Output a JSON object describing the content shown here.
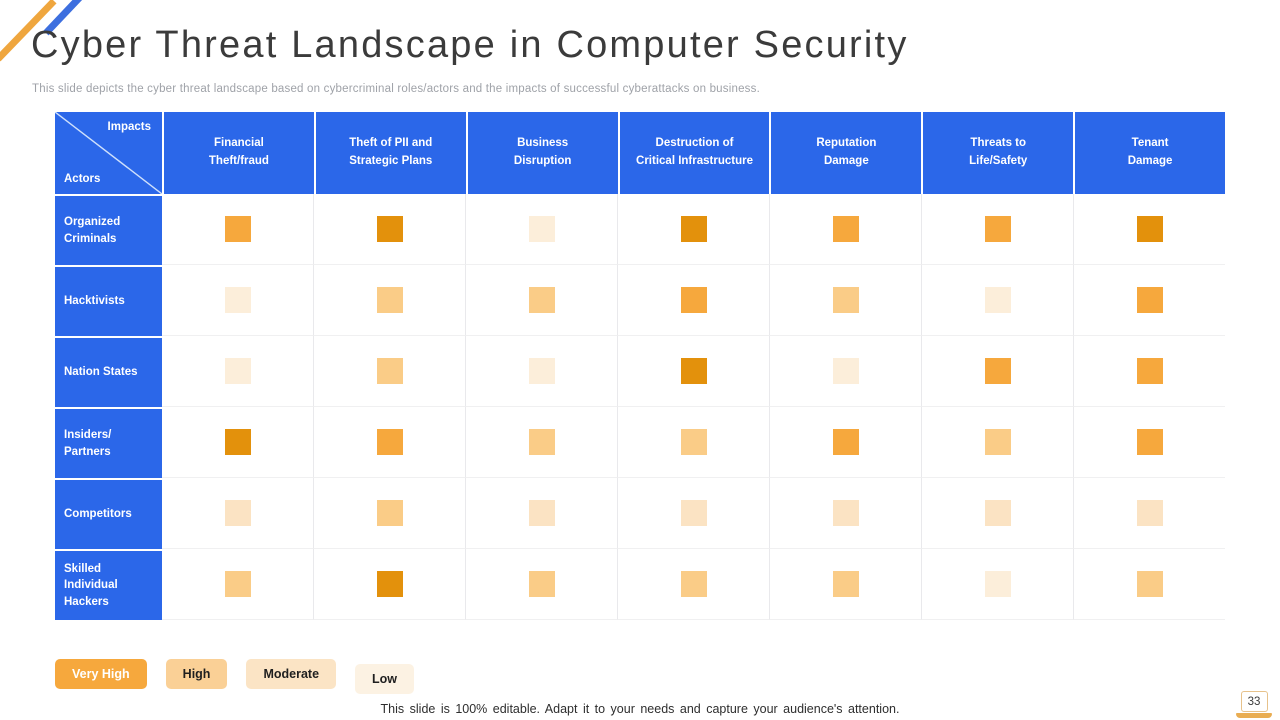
{
  "slide": {
    "title": "Cyber Threat Landscape in Computer Security",
    "subtitle": "This slide depicts the cyber threat landscape based on cybercriminal roles/actors and the impacts of successful cyberattacks on business.",
    "footer_note": "This slide is 100% editable. Adapt it to your needs and capture your audience's attention.",
    "page_number": "33"
  },
  "colors": {
    "header_blue": "#2b67e9",
    "decor_orange": "#efa63e",
    "decor_blue": "#3d6fdf",
    "grid_line": "#e9e9ec"
  },
  "matrix": {
    "corner": {
      "top_label": "Impacts",
      "bottom_label": "Actors"
    },
    "columns": [
      "Financial\nTheft/fraud",
      "Theft of PII and\nStrategic Plans",
      "Business\nDisruption",
      "Destruction of\nCritical Infrastructure",
      "Reputation\nDamage",
      "Threats to\nLife/Safety",
      "Tenant\nDamage"
    ],
    "rows": [
      {
        "actor": "Organized\nCriminals",
        "levels": [
          4,
          5,
          1,
          5,
          4,
          4,
          5
        ]
      },
      {
        "actor": "Hacktivists",
        "levels": [
          1,
          3,
          3,
          4,
          3,
          1,
          4
        ]
      },
      {
        "actor": "Nation States",
        "levels": [
          1,
          3,
          1,
          5,
          1,
          4,
          4
        ]
      },
      {
        "actor": "Insiders/\nPartners",
        "levels": [
          5,
          4,
          3,
          3,
          4,
          3,
          4
        ]
      },
      {
        "actor": "Competitors",
        "levels": [
          2,
          3,
          2,
          2,
          2,
          2,
          2
        ]
      },
      {
        "actor": "Skilled\nIndividual\nHackers",
        "levels": [
          3,
          5,
          3,
          3,
          3,
          1,
          3
        ]
      }
    ],
    "level_colors": {
      "1": "#fceeda",
      "2": "#fbe3c3",
      "3": "#facc87",
      "4": "#f6a83d",
      "5": "#e3910c"
    }
  },
  "legend": [
    {
      "label": "Very High",
      "color": "#f6a83d",
      "text_color": "#ffffff",
      "offset": false
    },
    {
      "label": "High",
      "color": "#fad096",
      "text_color": "#1f1f1f",
      "offset": false
    },
    {
      "label": "Moderate",
      "color": "#fbe4c5",
      "text_color": "#1f1f1f",
      "offset": false
    },
    {
      "label": "Low",
      "color": "#fcf2e3",
      "text_color": "#1f1f1f",
      "offset": true
    }
  ]
}
